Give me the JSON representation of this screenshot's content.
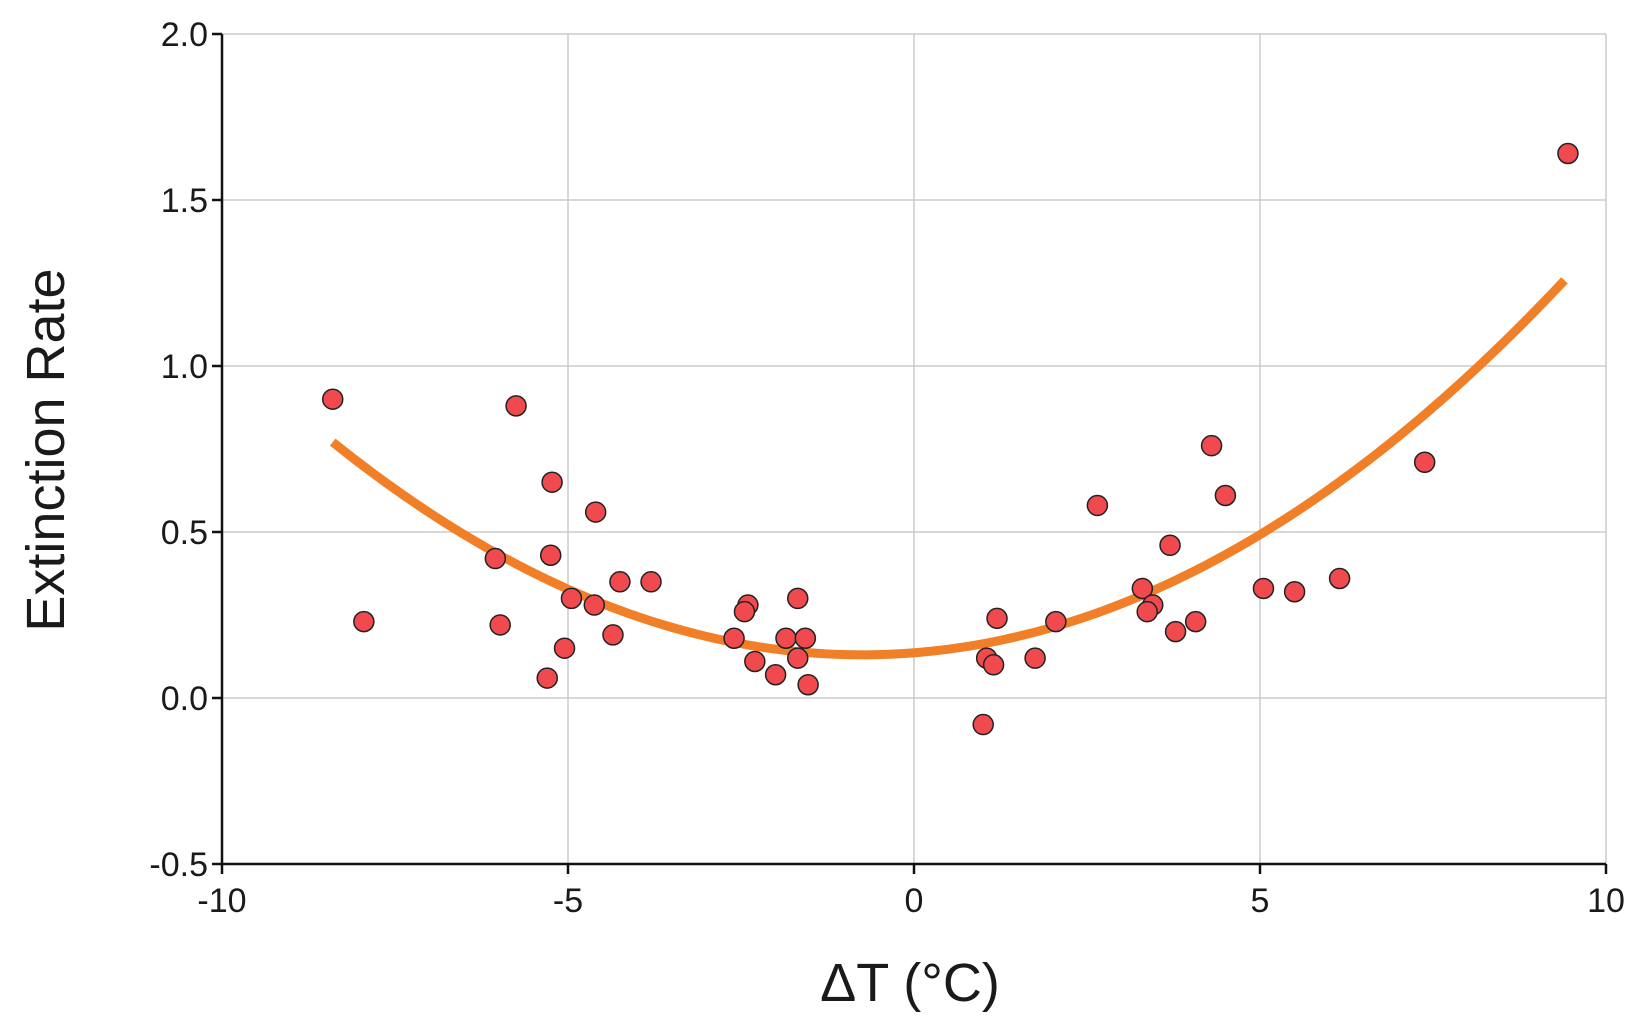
{
  "chart_data": {
    "type": "scatter",
    "title": "",
    "xlabel": "ΔT (°C)",
    "ylabel": "Extinction Rate",
    "xlim": [
      -10,
      10
    ],
    "ylim": [
      -0.5,
      2.0
    ],
    "xticks": [
      -10,
      -5,
      0,
      5,
      10
    ],
    "yticks": [
      -0.5,
      0.0,
      0.5,
      1.0,
      1.5,
      2.0
    ],
    "xtick_labels": [
      "-10",
      "-5",
      "0",
      "5",
      "10"
    ],
    "ytick_labels": [
      "-0.5",
      "0.0",
      "0.5",
      "1.0",
      "1.5",
      "2.0"
    ],
    "grid": true,
    "legend": "none",
    "point_color": "#f04a4f",
    "point_edge_color": "#222222",
    "fit_color": "#f07f27",
    "points": [
      {
        "x": -8.4,
        "y": 0.9
      },
      {
        "x": -7.95,
        "y": 0.23
      },
      {
        "x": -6.05,
        "y": 0.42
      },
      {
        "x": -5.98,
        "y": 0.22
      },
      {
        "x": -5.75,
        "y": 0.88
      },
      {
        "x": -5.3,
        "y": 0.06
      },
      {
        "x": -5.23,
        "y": 0.65
      },
      {
        "x": -5.25,
        "y": 0.43
      },
      {
        "x": -5.05,
        "y": 0.15
      },
      {
        "x": -4.95,
        "y": 0.3
      },
      {
        "x": -4.6,
        "y": 0.56
      },
      {
        "x": -4.62,
        "y": 0.28
      },
      {
        "x": -4.35,
        "y": 0.19
      },
      {
        "x": -4.25,
        "y": 0.35
      },
      {
        "x": -3.8,
        "y": 0.35
      },
      {
        "x": -2.6,
        "y": 0.18
      },
      {
        "x": -2.4,
        "y": 0.28
      },
      {
        "x": -2.45,
        "y": 0.26
      },
      {
        "x": -2.3,
        "y": 0.11
      },
      {
        "x": -2.0,
        "y": 0.07
      },
      {
        "x": -1.85,
        "y": 0.18
      },
      {
        "x": -1.68,
        "y": 0.3
      },
      {
        "x": -1.68,
        "y": 0.12
      },
      {
        "x": -1.57,
        "y": 0.18
      },
      {
        "x": -1.53,
        "y": 0.04
      },
      {
        "x": 1.0,
        "y": -0.08
      },
      {
        "x": 1.05,
        "y": 0.12
      },
      {
        "x": 1.15,
        "y": 0.1
      },
      {
        "x": 1.2,
        "y": 0.24
      },
      {
        "x": 1.75,
        "y": 0.12
      },
      {
        "x": 2.05,
        "y": 0.23
      },
      {
        "x": 2.65,
        "y": 0.58
      },
      {
        "x": 3.3,
        "y": 0.33
      },
      {
        "x": 3.45,
        "y": 0.28
      },
      {
        "x": 3.37,
        "y": 0.26
      },
      {
        "x": 3.7,
        "y": 0.46
      },
      {
        "x": 3.78,
        "y": 0.2
      },
      {
        "x": 4.07,
        "y": 0.23
      },
      {
        "x": 4.3,
        "y": 0.76
      },
      {
        "x": 4.5,
        "y": 0.61
      },
      {
        "x": 5.05,
        "y": 0.33
      },
      {
        "x": 5.5,
        "y": 0.32
      },
      {
        "x": 6.15,
        "y": 0.36
      },
      {
        "x": 7.38,
        "y": 0.71
      },
      {
        "x": 9.45,
        "y": 1.64
      }
    ],
    "fit": {
      "type": "quadratic",
      "x_range": [
        -8.4,
        9.4
      ],
      "vertex_x": -0.75,
      "vertex_y": 0.13,
      "coef_a": 0.01095
    }
  }
}
